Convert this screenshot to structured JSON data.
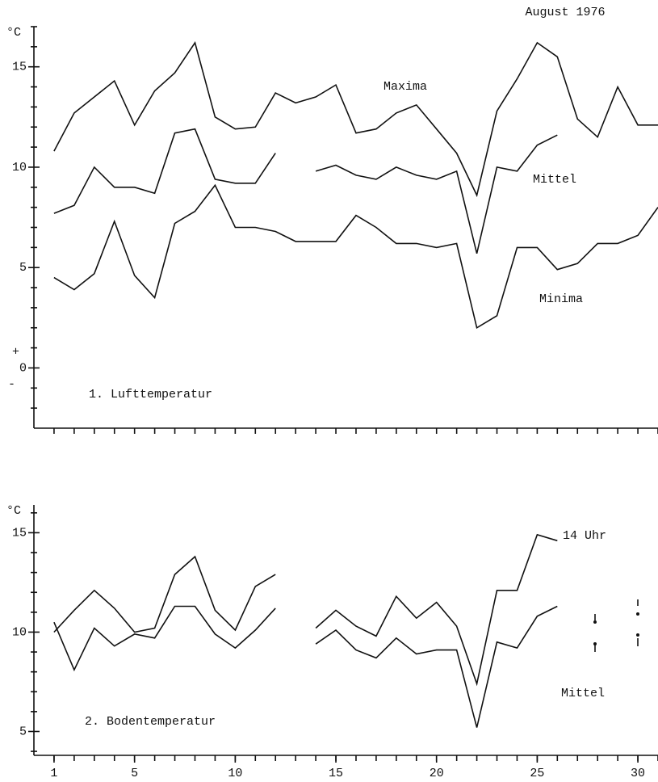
{
  "chart_data": [
    {
      "type": "line",
      "title": "August 1976",
      "ylabel": "°C",
      "annotation": "1. Lufttemperatur",
      "sign_labels": [
        "+",
        "-"
      ],
      "x": [
        1,
        2,
        3,
        4,
        5,
        6,
        7,
        8,
        9,
        10,
        11,
        12,
        13,
        14,
        15,
        16,
        17,
        18,
        19,
        20,
        21,
        22,
        23,
        24,
        25,
        26,
        27,
        28,
        29,
        30,
        31
      ],
      "xlim": [
        0,
        31
      ],
      "minor_xticks": [
        1,
        2,
        3,
        4,
        5,
        6,
        7,
        8,
        9,
        10,
        11,
        12,
        13,
        14,
        15,
        16,
        17,
        18,
        19,
        20,
        21,
        22,
        23,
        24,
        25,
        26,
        27,
        28,
        29,
        30,
        31
      ],
      "ylim": [
        -3,
        17
      ],
      "yticks": [
        0,
        5,
        10,
        15
      ],
      "minor_yticks": [
        -2,
        -1,
        1,
        2,
        3,
        4,
        6,
        7,
        8,
        9,
        11,
        12,
        13,
        14,
        16,
        17
      ],
      "series": [
        {
          "name": "Maxima",
          "color": "#111111",
          "values": [
            10.8,
            12.7,
            13.5,
            14.3,
            12.1,
            13.8,
            14.7,
            16.2,
            12.5,
            11.9,
            12.0,
            13.7,
            13.2,
            13.5,
            14.1,
            11.7,
            11.9,
            12.7,
            13.1,
            11.9,
            10.7,
            8.6,
            12.8,
            14.4,
            16.2,
            15.5,
            12.4,
            11.5,
            14.0,
            12.1,
            12.1
          ]
        },
        {
          "name": "Mittel",
          "color": "#111111",
          "values": [
            7.7,
            8.1,
            10.0,
            9.0,
            9.0,
            8.7,
            11.7,
            11.9,
            9.4,
            9.2,
            9.2,
            10.7,
            null,
            9.8,
            10.1,
            9.6,
            9.4,
            10.0,
            9.6,
            9.4,
            9.8,
            5.7,
            10.0,
            9.8,
            11.1,
            11.6,
            null,
            null,
            null,
            null,
            null
          ]
        },
        {
          "name": "Minima",
          "color": "#111111",
          "values": [
            4.5,
            3.9,
            4.7,
            7.3,
            4.6,
            3.5,
            7.2,
            7.8,
            9.1,
            7.0,
            7.0,
            6.8,
            6.3,
            6.3,
            6.3,
            7.6,
            7.0,
            6.2,
            6.2,
            6.0,
            6.2,
            2.0,
            2.6,
            6.0,
            6.0,
            4.9,
            5.2,
            6.2,
            6.2,
            6.6,
            8.0
          ]
        }
      ]
    },
    {
      "type": "line",
      "ylabel": "°C",
      "annotation": "2. Bodentemperatur",
      "x": [
        1,
        2,
        3,
        4,
        5,
        6,
        7,
        8,
        9,
        10,
        11,
        12,
        13,
        14,
        15,
        16,
        17,
        18,
        19,
        20,
        21,
        22,
        23,
        24,
        25,
        26
      ],
      "xlim": [
        0,
        31
      ],
      "xticks": [
        1,
        5,
        10,
        15,
        20,
        25,
        30
      ],
      "minor_xticks": [
        1,
        2,
        3,
        4,
        5,
        6,
        7,
        8,
        9,
        10,
        11,
        12,
        13,
        14,
        15,
        16,
        17,
        18,
        19,
        20,
        21,
        22,
        23,
        24,
        25,
        26,
        27,
        28,
        29,
        30,
        31
      ],
      "ylim": [
        3.8,
        16.4
      ],
      "yticks": [
        5,
        10,
        15
      ],
      "minor_yticks": [
        4,
        6,
        7,
        8,
        9,
        11,
        12,
        13,
        14,
        16
      ],
      "series": [
        {
          "name": "14 Uhr",
          "color": "#111111",
          "values": [
            10.0,
            11.1,
            12.1,
            11.2,
            10.0,
            10.2,
            12.9,
            13.8,
            11.1,
            10.1,
            12.3,
            12.9,
            null,
            10.2,
            11.1,
            10.3,
            9.8,
            11.8,
            10.7,
            11.5,
            10.3,
            7.4,
            12.1,
            12.1,
            14.9,
            14.6
          ]
        },
        {
          "name": "Mittel",
          "color": "#111111",
          "values": [
            10.5,
            8.1,
            10.2,
            9.3,
            9.9,
            9.7,
            11.3,
            11.3,
            9.9,
            9.2,
            10.1,
            11.2,
            null,
            9.4,
            10.1,
            9.1,
            8.7,
            9.7,
            8.9,
            9.1,
            9.1,
            5.2,
            9.5,
            9.2,
            10.8,
            11.3
          ]
        }
      ]
    }
  ]
}
